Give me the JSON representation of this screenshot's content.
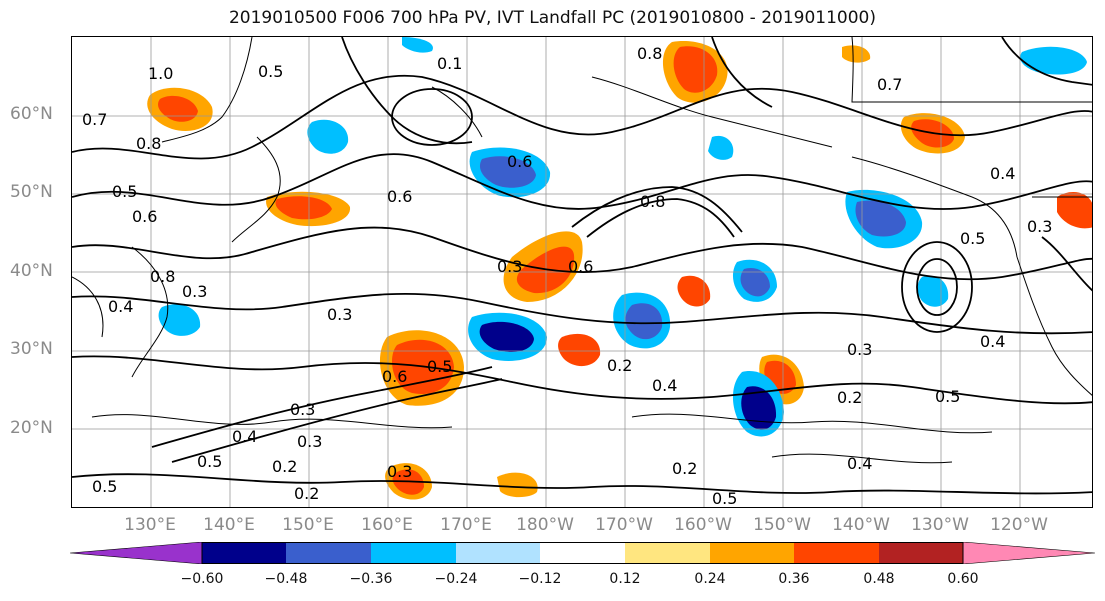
{
  "title": "2019010500 F006 700 hPa PV, IVT Landfall PC (2019010800 - 2019011000)",
  "lat_labels": [
    "60°N",
    "50°N",
    "40°N",
    "30°N",
    "20°N"
  ],
  "lon_labels": [
    "130°E",
    "140°E",
    "150°E",
    "160°E",
    "170°E",
    "180°W",
    "170°W",
    "160°W",
    "150°W",
    "140°W",
    "130°W",
    "120°W"
  ],
  "contour_labels": [
    "1.0",
    "0.5",
    "0.7",
    "0.8",
    "0.6",
    "0.5",
    "0.8",
    "0.4",
    "0.3",
    "0.6",
    "0.3",
    "0.5",
    "0.6",
    "0.4",
    "0.3",
    "0.2",
    "0.5",
    "0.3",
    "0.5",
    "0.2",
    "0.3",
    "0.2",
    "0.2",
    "0.5",
    "0.4",
    "0.4",
    "0.3",
    "0.2",
    "0.4",
    "0.5",
    "0.7",
    "0.8",
    "0.6",
    "0.4",
    "0.3",
    "0.6",
    "0.8",
    "0.5",
    "0.3",
    "0.1"
  ],
  "colorbar": {
    "ticks": [
      "−0.60",
      "−0.48",
      "−0.36",
      "−0.24",
      "−0.12",
      "0.12",
      "0.24",
      "0.36",
      "0.48",
      "0.60"
    ],
    "colors": [
      "#9932cc",
      "#00008b",
      "#3a5fcd",
      "#00bfff",
      "#b0e2ff",
      "#ffffff",
      "#ffe680",
      "#ffa500",
      "#ff4500",
      "#b22222",
      "#ff88b4"
    ]
  }
}
